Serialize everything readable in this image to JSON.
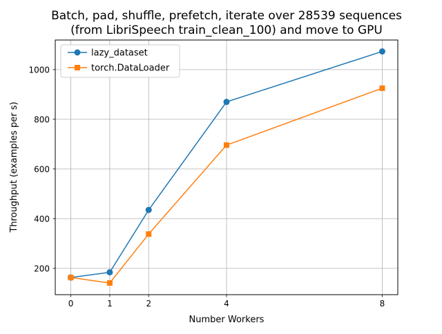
{
  "chart_data": {
    "type": "line",
    "title_line1": "Batch, pad, shuffle, prefetch, iterate over 28539 sequences",
    "title_line2": "(from LibriSpeech train_clean_100) and move to GPU",
    "xlabel": "Number Workers",
    "ylabel": "Throughput (examples per s)",
    "x": [
      0,
      1,
      2,
      4,
      8
    ],
    "xticks": [
      "0",
      "1",
      "2",
      "4",
      "8"
    ],
    "yticks": [
      "200",
      "400",
      "600",
      "800",
      "1000"
    ],
    "ytick_values": [
      200,
      400,
      600,
      800,
      1000
    ],
    "xlim": [
      -0.4,
      8.4
    ],
    "ylim": [
      94,
      1119
    ],
    "grid": true,
    "legend_position": "upper-left",
    "series": [
      {
        "name": "lazy_dataset",
        "values": [
          163,
          184,
          435,
          870,
          1073
        ],
        "color": "#1f77b4",
        "marker": "circle"
      },
      {
        "name": "torch.DataLoader",
        "values": [
          163,
          141,
          338,
          696,
          925
        ],
        "color": "#ff7f0e",
        "marker": "square"
      }
    ]
  }
}
